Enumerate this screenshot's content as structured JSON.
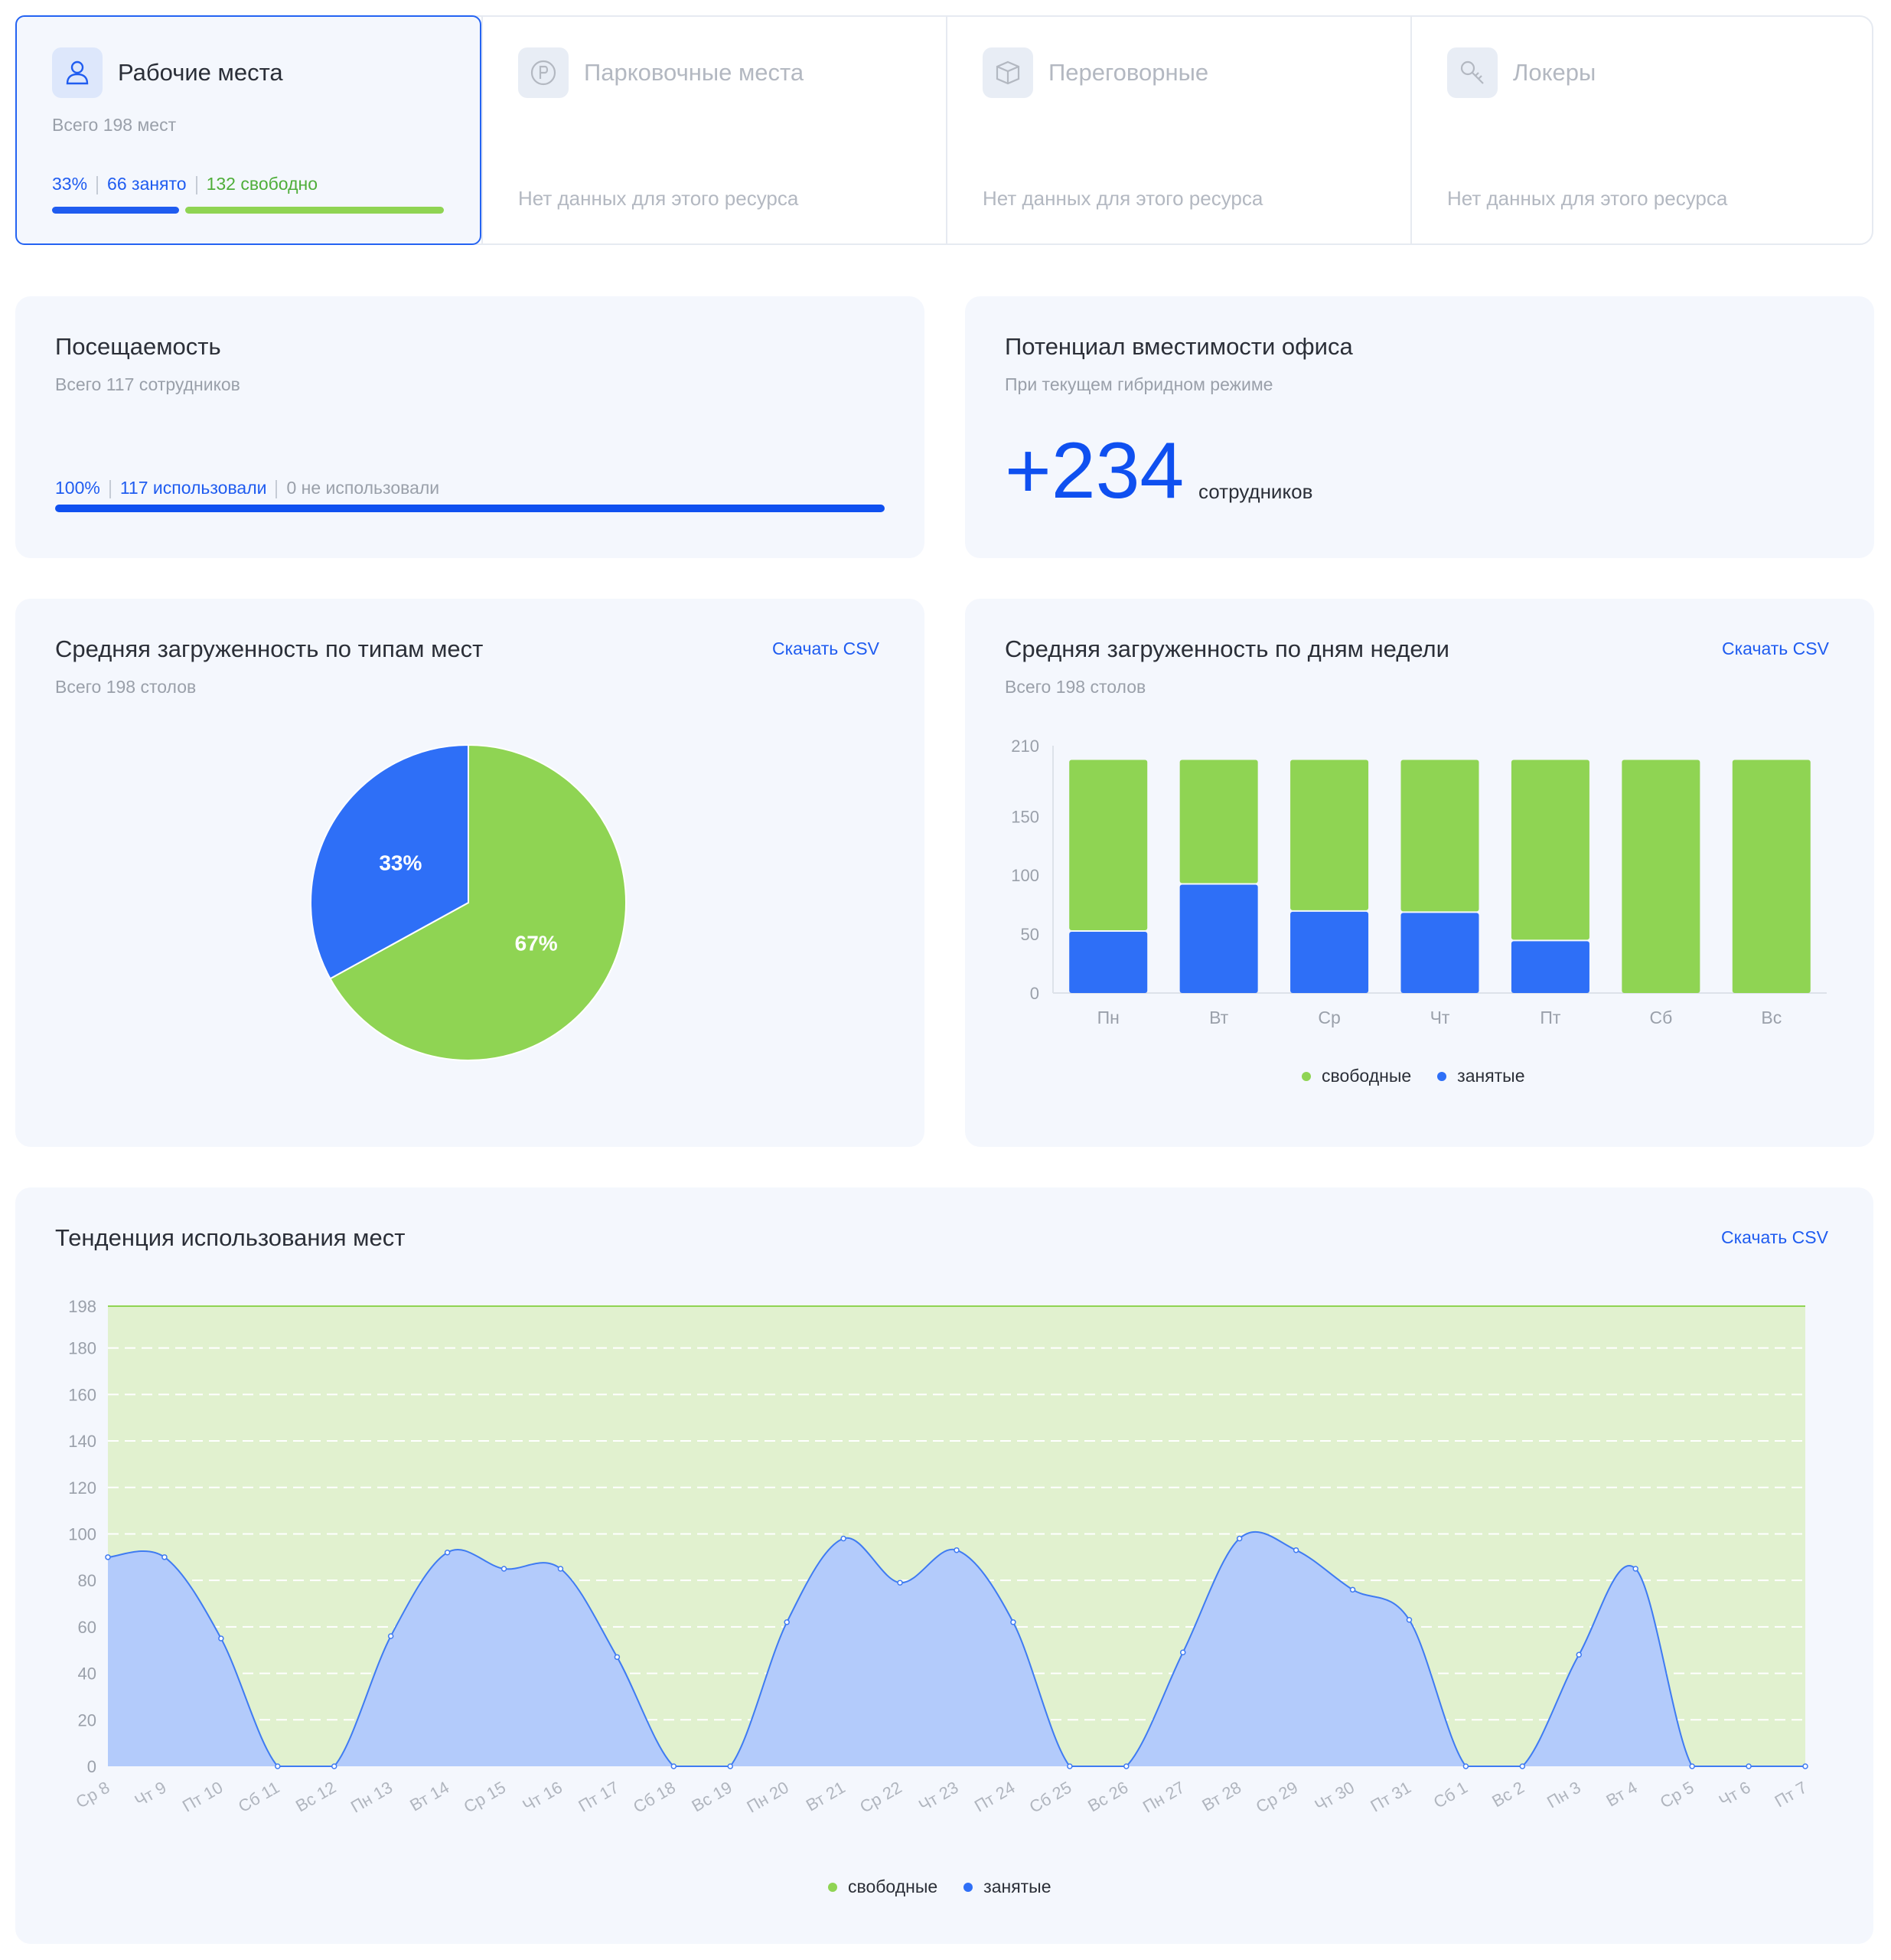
{
  "colors": {
    "accent": "#1f5cf0",
    "free": "#8fd453",
    "busy": "#2e6ff7",
    "trend_free_fill": "#e1f1cf",
    "trend_busy_fill": "#b3cbfb"
  },
  "tabs": [
    {
      "icon": "user-icon",
      "title": "Рабочие места",
      "subtitle": "Всего 198 мест",
      "pct": "33%",
      "busy": "66 занято",
      "free": "132 свободно",
      "busy_fraction": 0.33
    },
    {
      "icon": "parking-icon",
      "title": "Парковочные места",
      "no_data": "Нет данных для этого ресурса"
    },
    {
      "icon": "meeting-room-icon",
      "title": "Переговорные",
      "no_data": "Нет данных для этого ресурса"
    },
    {
      "icon": "key-icon",
      "title": "Локеры",
      "no_data": "Нет данных для этого ресурса"
    }
  ],
  "attendance": {
    "title": "Посещаемость",
    "subtitle": "Всего 117 сотрудников",
    "pct": "100%",
    "used": "117 использовали",
    "unused": "0 не использовали",
    "used_fraction": 1.0
  },
  "capacity": {
    "title": "Потенциал вместимости офиса",
    "subtitle": "При текущем гибридном режиме",
    "value": "+234",
    "unit": "сотрудников"
  },
  "pie_card": {
    "title": "Средняя загруженность по типам мест",
    "subtitle": "Всего 198 столов",
    "csv": "Скачать CSV"
  },
  "week_card": {
    "title": "Средняя загруженность по дням недели",
    "subtitle": "Всего 198 столов",
    "csv": "Скачать CSV"
  },
  "trend_card": {
    "title": "Тенденция использования мест",
    "csv": "Скачать CSV"
  },
  "legend": {
    "free": "свободные",
    "busy": "занятые"
  },
  "chart_data": [
    {
      "type": "pie",
      "slices": [
        {
          "label": "33%",
          "value": 33,
          "color": "#2e6ff7"
        },
        {
          "label": "67%",
          "value": 67,
          "color": "#8fd453"
        }
      ]
    },
    {
      "type": "bar",
      "stacked": true,
      "categories": [
        "Пн",
        "Вт",
        "Ср",
        "Чт",
        "Пт",
        "Сб",
        "Вс"
      ],
      "series": [
        {
          "name": "занятые",
          "color": "#2e6ff7",
          "values": [
            52,
            92,
            69,
            68,
            44,
            0,
            0
          ]
        },
        {
          "name": "свободные",
          "color": "#8fd453",
          "values": [
            146,
            106,
            129,
            130,
            154,
            198,
            198
          ]
        }
      ],
      "yticks": [
        0,
        50,
        100,
        150,
        210
      ],
      "ylim": [
        0,
        210
      ],
      "legend": "bottom"
    },
    {
      "type": "area",
      "x": [
        "Ср 8",
        "Чт 9",
        "Пт 10",
        "Сб 11",
        "Вс 12",
        "Пн 13",
        "Вт 14",
        "Ср 15",
        "Чт 16",
        "Пт 17",
        "Сб 18",
        "Вс 19",
        "Пн 20",
        "Вт 21",
        "Ср 22",
        "Чт 23",
        "Пт 24",
        "Сб 25",
        "Вс 26",
        "Пн 27",
        "Вт 28",
        "Ср 29",
        "Чт 30",
        "Пт 31",
        "Сб 1",
        "Вс 2",
        "Пн 3",
        "Вт 4",
        "Ср 5",
        "Чт 6",
        "Пт 7"
      ],
      "series": [
        {
          "name": "свободные",
          "values": [
            198,
            198,
            198,
            198,
            198,
            198,
            198,
            198,
            198,
            198,
            198,
            198,
            198,
            198,
            198,
            198,
            198,
            198,
            198,
            198,
            198,
            198,
            198,
            198,
            198,
            198,
            198,
            198,
            198,
            198,
            198
          ]
        },
        {
          "name": "занятые",
          "values": [
            90,
            90,
            55,
            0,
            0,
            56,
            92,
            85,
            85,
            47,
            0,
            0,
            62,
            98,
            79,
            93,
            62,
            0,
            0,
            49,
            98,
            93,
            76,
            63,
            0,
            0,
            48,
            85,
            0,
            0,
            0
          ]
        }
      ],
      "yticks": [
        0,
        20,
        40,
        60,
        80,
        100,
        120,
        140,
        160,
        180,
        198
      ],
      "ylim": [
        0,
        198
      ],
      "grid": true,
      "legend": "bottom"
    }
  ]
}
